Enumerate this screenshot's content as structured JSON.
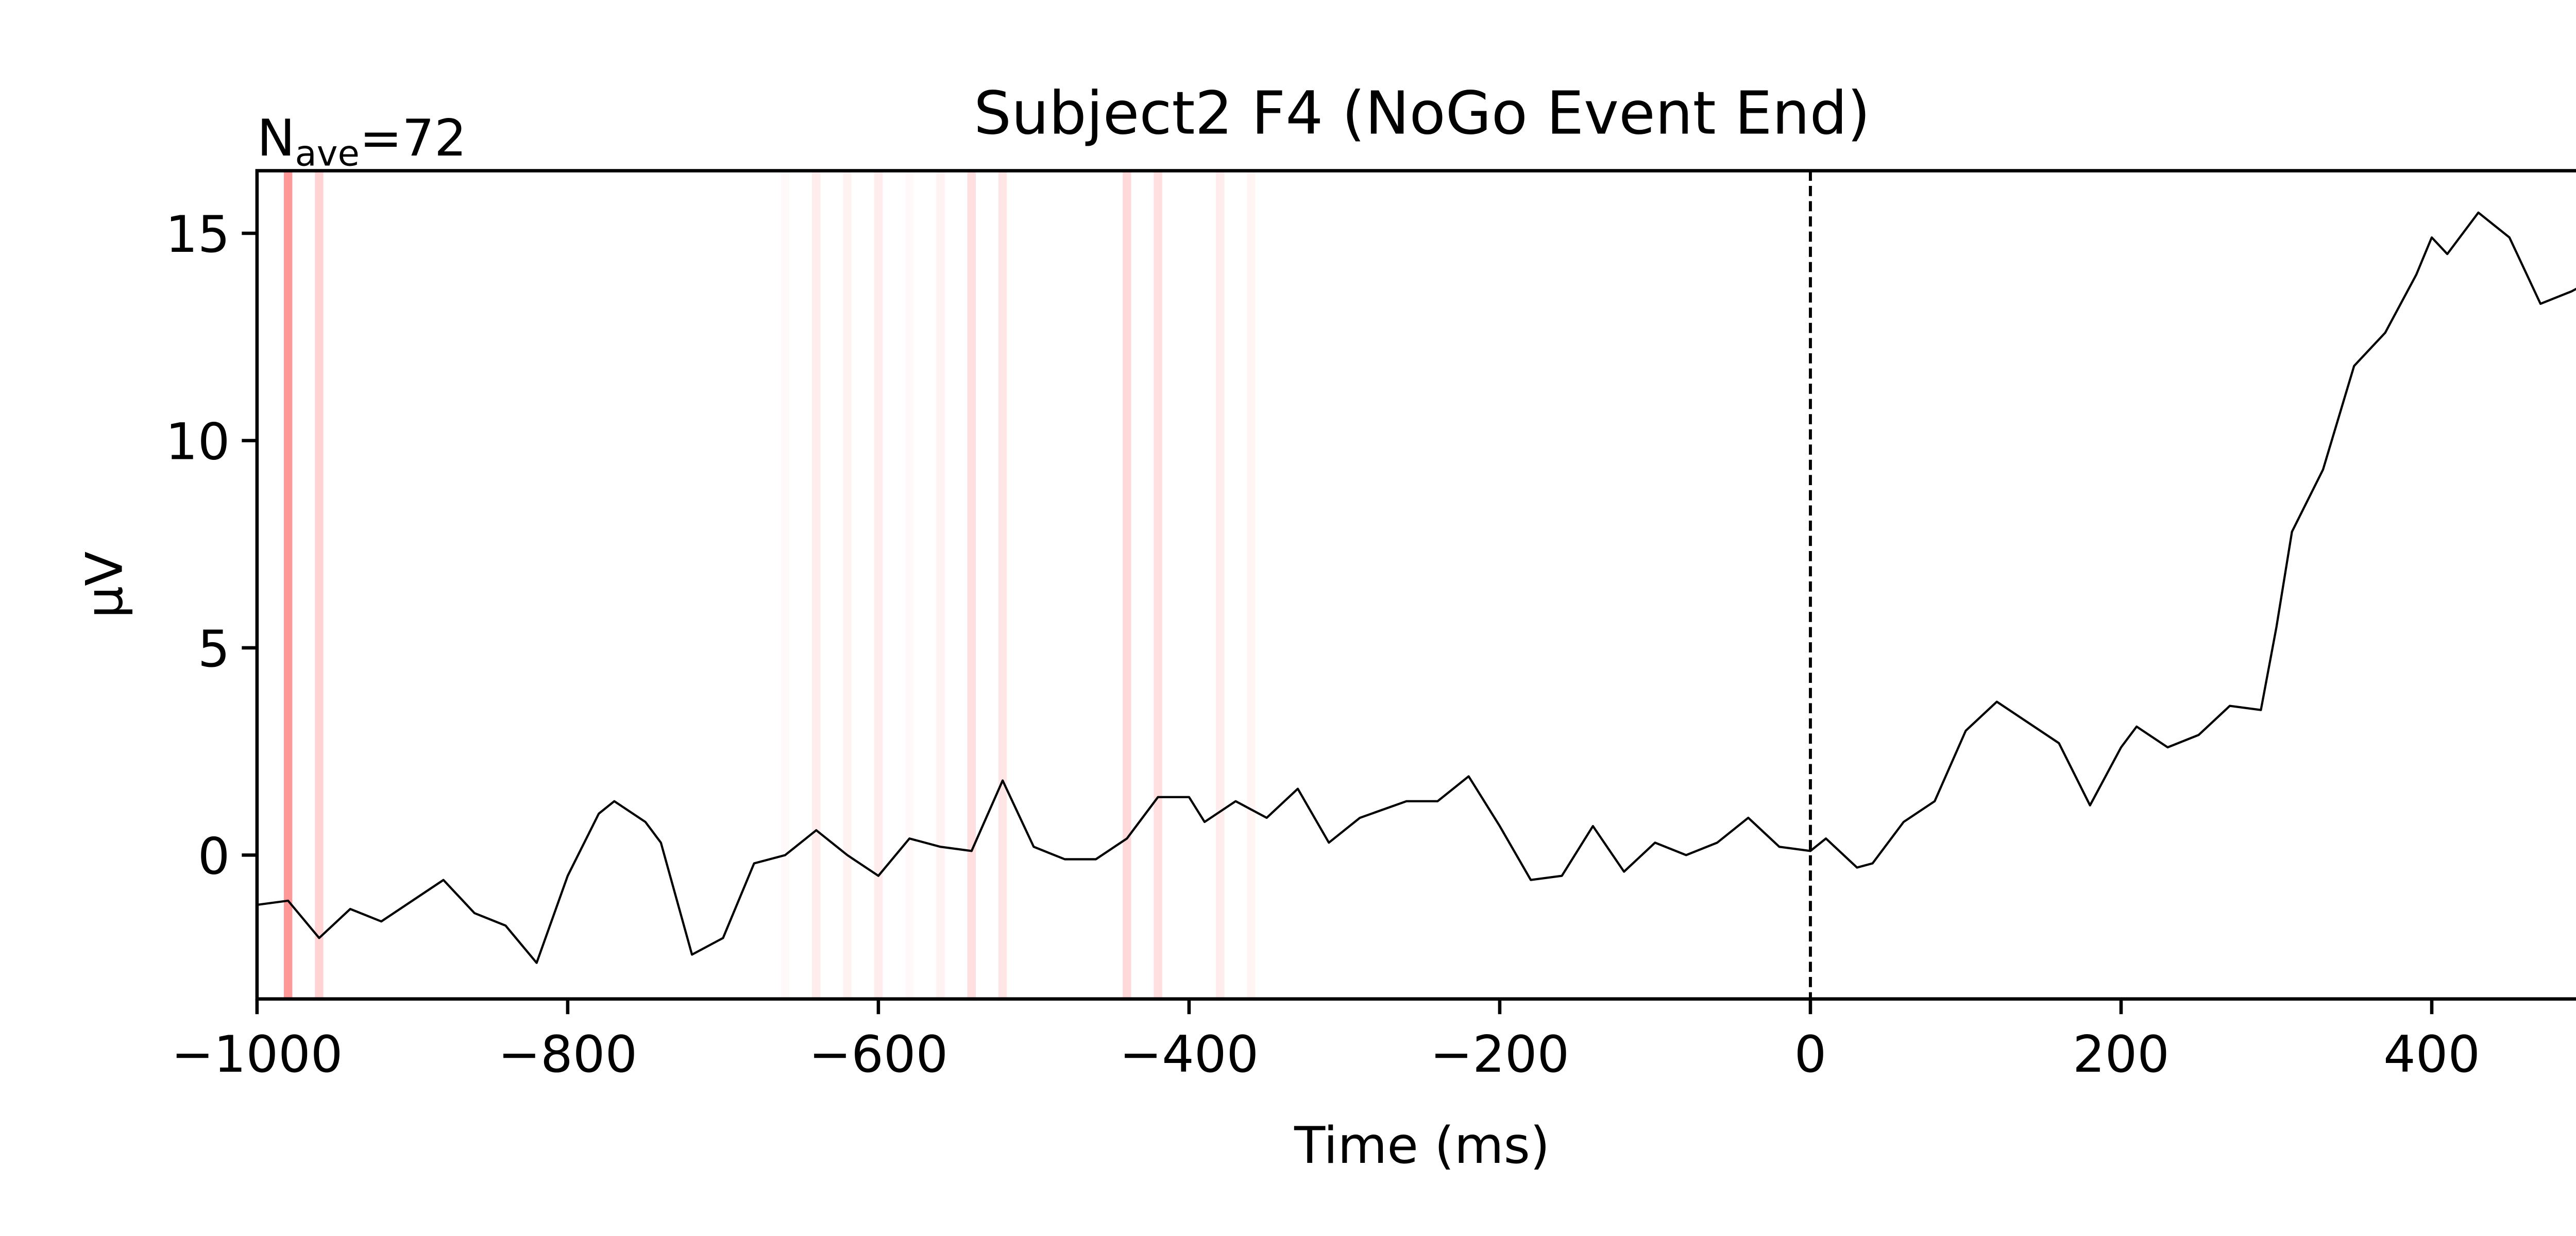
{
  "chart_data": {
    "type": "line",
    "title": "Subject2 F4 (NoGo Event End)",
    "annotation": {
      "base": "N",
      "sub": "ave",
      "text": "=72"
    },
    "x_label": "Time (ms)",
    "y_label": "µV",
    "x": [
      -1000,
      -980,
      -960,
      -940,
      -920,
      -900,
      -880,
      -860,
      -840,
      -820,
      -800,
      -780,
      -770,
      -750,
      -740,
      -720,
      -700,
      -680,
      -660,
      -640,
      -620,
      -600,
      -580,
      -560,
      -540,
      -520,
      -500,
      -480,
      -460,
      -440,
      -420,
      -400,
      -390,
      -370,
      -350,
      -330,
      -310,
      -290,
      -260,
      -240,
      -220,
      -200,
      -180,
      -160,
      -140,
      -120,
      -100,
      -80,
      -60,
      -40,
      -20,
      0,
      10,
      30,
      40,
      60,
      80,
      100,
      120,
      140,
      160,
      180,
      200,
      210,
      230,
      250,
      270,
      290,
      300,
      310,
      330,
      350,
      370,
      390,
      400,
      410,
      430,
      450,
      470,
      490,
      500
    ],
    "series": [
      {
        "color": "#000000",
        "values": [
          -1.2,
          -1.1,
          -2.0,
          -1.3,
          -1.6,
          -1.1,
          -0.6,
          -1.4,
          -1.7,
          -2.6,
          -0.5,
          1.0,
          1.3,
          0.8,
          0.3,
          -2.4,
          -2.0,
          -0.2,
          0.0,
          0.6,
          0.0,
          -0.5,
          0.4,
          0.2,
          0.1,
          1.8,
          0.2,
          -0.1,
          -0.1,
          0.4,
          1.4,
          1.4,
          0.8,
          1.3,
          0.9,
          1.6,
          0.3,
          0.9,
          1.3,
          1.3,
          1.9,
          0.7,
          -0.6,
          -0.5,
          0.7,
          -0.4,
          0.3,
          0.0,
          0.3,
          0.9,
          0.2,
          0.1,
          0.4,
          -0.3,
          -0.2,
          0.8,
          1.3,
          3.0,
          3.7,
          3.2,
          2.7,
          1.2,
          2.6,
          3.1,
          2.6,
          2.9,
          3.6,
          3.5,
          5.5,
          7.8,
          9.3,
          11.8,
          12.6,
          14.0,
          14.9,
          14.5,
          15.5,
          14.9,
          13.3,
          13.6,
          13.8
        ]
      }
    ],
    "shaded_times": [
      -980,
      -960,
      -660,
      -640,
      -620,
      -600,
      -580,
      -560,
      -540,
      -520,
      -440,
      -420,
      -380,
      -360
    ],
    "shaded_alpha": [
      0.8,
      0.35,
      0.05,
      0.15,
      0.1,
      0.15,
      0.05,
      0.1,
      0.25,
      0.2,
      0.3,
      0.25,
      0.15,
      0.08
    ],
    "shade_color": "#ff8080",
    "vline": 0,
    "xlim": [
      -1000,
      500
    ],
    "xticks": [
      {
        "value": -1000,
        "label": "−1000"
      },
      {
        "value": -800,
        "label": "−800"
      },
      {
        "value": -600,
        "label": "−600"
      },
      {
        "value": -400,
        "label": "−400"
      },
      {
        "value": -200,
        "label": "−200"
      },
      0,
      200,
      400
    ],
    "ylim": [
      -3.47,
      16.51
    ],
    "yticks": [
      0,
      5,
      10,
      15
    ]
  }
}
